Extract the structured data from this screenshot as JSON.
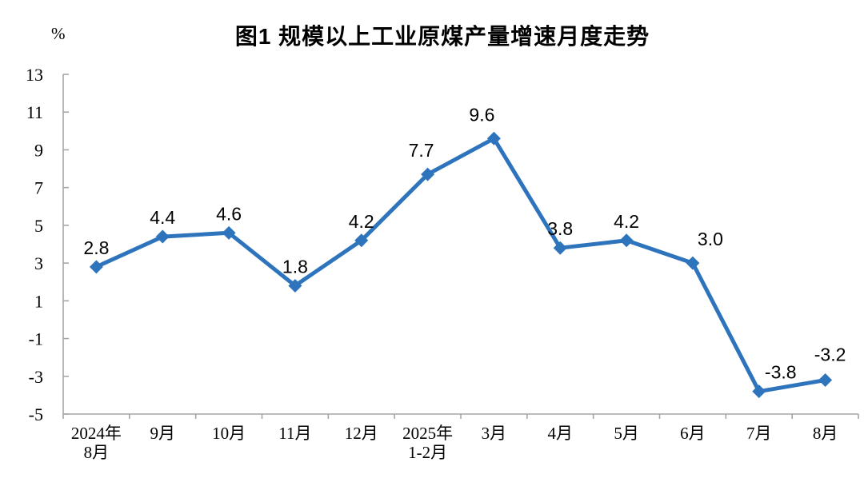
{
  "chart_data": {
    "type": "line",
    "title": "图1 规模以上工业原煤产量增速月度走势",
    "unit_label": "%",
    "categories": [
      [
        "2024年",
        "8月"
      ],
      [
        "9月"
      ],
      [
        "10月"
      ],
      [
        "11月"
      ],
      [
        "12月"
      ],
      [
        "2025年",
        "1-2月"
      ],
      [
        "3月"
      ],
      [
        "4月"
      ],
      [
        "5月"
      ],
      [
        "6月"
      ],
      [
        "7月"
      ],
      [
        "8月"
      ]
    ],
    "values": [
      2.8,
      4.4,
      4.6,
      1.8,
      4.2,
      7.7,
      9.6,
      3.8,
      4.2,
      3.0,
      -3.8,
      -3.2
    ],
    "data_labels": [
      "2.8",
      "4.4",
      "4.6",
      "1.8",
      "4.2",
      "7.7",
      "9.6",
      "3.8",
      "4.2",
      "3.0",
      "-3.8",
      "-3.2"
    ],
    "yticks": [
      13,
      11,
      9,
      7,
      5,
      3,
      1,
      -1,
      -3,
      -5
    ],
    "ylim": [
      -5,
      13
    ],
    "xlabel": "",
    "ylabel": "",
    "grid": false,
    "legend_position": "none",
    "marker": "diamond",
    "line_color": "#2E74BD",
    "axis_color": "#A6A6A6",
    "text_color": "#000000",
    "label_offsets": {
      "5": {
        "dx": -8,
        "dy": -22
      },
      "6": {
        "dx": -15,
        "dy": -22
      },
      "9": {
        "dx": 22,
        "dy": -22
      },
      "10": {
        "dx": 27,
        "dy": -16
      },
      "11": {
        "dx": 6,
        "dy": -24
      }
    }
  }
}
